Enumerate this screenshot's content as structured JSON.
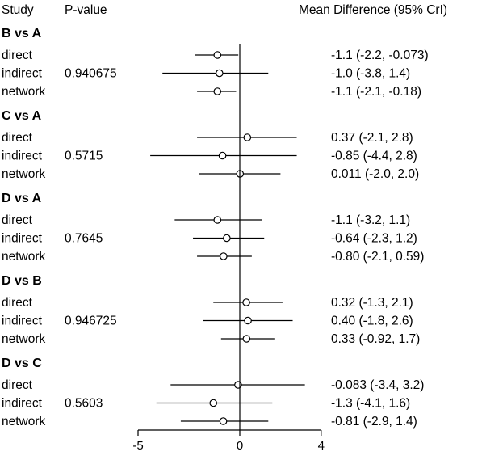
{
  "chart_data": {
    "type": "forest",
    "title": "",
    "headers": {
      "study": "Study",
      "pvalue": "P-value",
      "estimate": "Mean Difference (95% CrI)"
    },
    "xlim": [
      -5,
      4
    ],
    "xticks": [
      "-5",
      "0",
      "4"
    ],
    "reference_line": 0,
    "groups": [
      {
        "label": "B vs A",
        "pvalue": "0.940675",
        "rows": [
          {
            "study": "direct",
            "mean": -1.1,
            "lower": -2.2,
            "upper": -0.073,
            "text": "-1.1 (-2.2, -0.073)"
          },
          {
            "study": "indirect",
            "mean": -1.0,
            "lower": -3.8,
            "upper": 1.4,
            "text": "-1.0 (-3.8, 1.4)"
          },
          {
            "study": "network",
            "mean": -1.1,
            "lower": -2.1,
            "upper": -0.18,
            "text": "-1.1 (-2.1, -0.18)"
          }
        ]
      },
      {
        "label": "C vs A",
        "pvalue": "0.5715",
        "rows": [
          {
            "study": "direct",
            "mean": 0.37,
            "lower": -2.1,
            "upper": 2.8,
            "text": "0.37 (-2.1, 2.8)"
          },
          {
            "study": "indirect",
            "mean": -0.85,
            "lower": -4.4,
            "upper": 2.8,
            "text": "-0.85 (-4.4, 2.8)"
          },
          {
            "study": "network",
            "mean": 0.011,
            "lower": -2.0,
            "upper": 2.0,
            "text": "0.011 (-2.0, 2.0)"
          }
        ]
      },
      {
        "label": "D vs A",
        "pvalue": "0.7645",
        "rows": [
          {
            "study": "direct",
            "mean": -1.1,
            "lower": -3.2,
            "upper": 1.1,
            "text": "-1.1 (-3.2, 1.1)"
          },
          {
            "study": "indirect",
            "mean": -0.64,
            "lower": -2.3,
            "upper": 1.2,
            "text": "-0.64 (-2.3, 1.2)"
          },
          {
            "study": "network",
            "mean": -0.8,
            "lower": -2.1,
            "upper": 0.59,
            "text": "-0.80 (-2.1, 0.59)"
          }
        ]
      },
      {
        "label": "D vs B",
        "pvalue": "0.946725",
        "rows": [
          {
            "study": "direct",
            "mean": 0.32,
            "lower": -1.3,
            "upper": 2.1,
            "text": "0.32 (-1.3, 2.1)"
          },
          {
            "study": "indirect",
            "mean": 0.4,
            "lower": -1.8,
            "upper": 2.6,
            "text": "0.40 (-1.8, 2.6)"
          },
          {
            "study": "network",
            "mean": 0.33,
            "lower": -0.92,
            "upper": 1.7,
            "text": "0.33 (-0.92, 1.7)"
          }
        ]
      },
      {
        "label": "D vs C",
        "pvalue": "0.5603",
        "rows": [
          {
            "study": "direct",
            "mean": -0.083,
            "lower": -3.4,
            "upper": 3.2,
            "text": "-0.083 (-3.4, 3.2)"
          },
          {
            "study": "indirect",
            "mean": -1.3,
            "lower": -4.1,
            "upper": 1.6,
            "text": "-1.3 (-4.1, 1.6)"
          },
          {
            "study": "network",
            "mean": -0.81,
            "lower": -2.9,
            "upper": 1.4,
            "text": "-0.81 (-2.9, 1.4)"
          }
        ]
      }
    ]
  }
}
